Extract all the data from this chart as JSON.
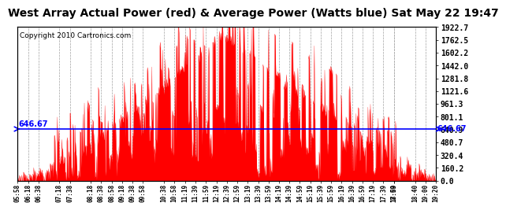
{
  "title": "West Array Actual Power (red) & Average Power (Watts blue) Sat May 22 19:47",
  "copyright": "Copyright 2010 Cartronics.com",
  "avg_power": 646.67,
  "ymax": 1922.7,
  "ymin": 0.0,
  "yticks": [
    0.0,
    160.2,
    320.4,
    480.7,
    640.9,
    801.1,
    961.3,
    1121.6,
    1281.8,
    1442.0,
    1602.2,
    1762.5,
    1922.7
  ],
  "ytick_labels_right": [
    "0.0",
    "160.2",
    "320.4",
    "480.7",
    "640.9",
    "801.1",
    "961.3",
    "1121.6",
    "1281.8",
    "1442.0",
    "1602.2",
    "1762.5",
    "1922.7"
  ],
  "avg_label": "646.67",
  "bar_color": "#FF0000",
  "avg_color": "#0000FF",
  "background_color": "#FFFFFF",
  "grid_color": "#AAAAAA",
  "title_fontsize": 10,
  "copyright_fontsize": 6.5,
  "start_hour": 5.9667,
  "end_hour": 19.3333,
  "peak_hour": 12.5,
  "sigma": 2.8
}
